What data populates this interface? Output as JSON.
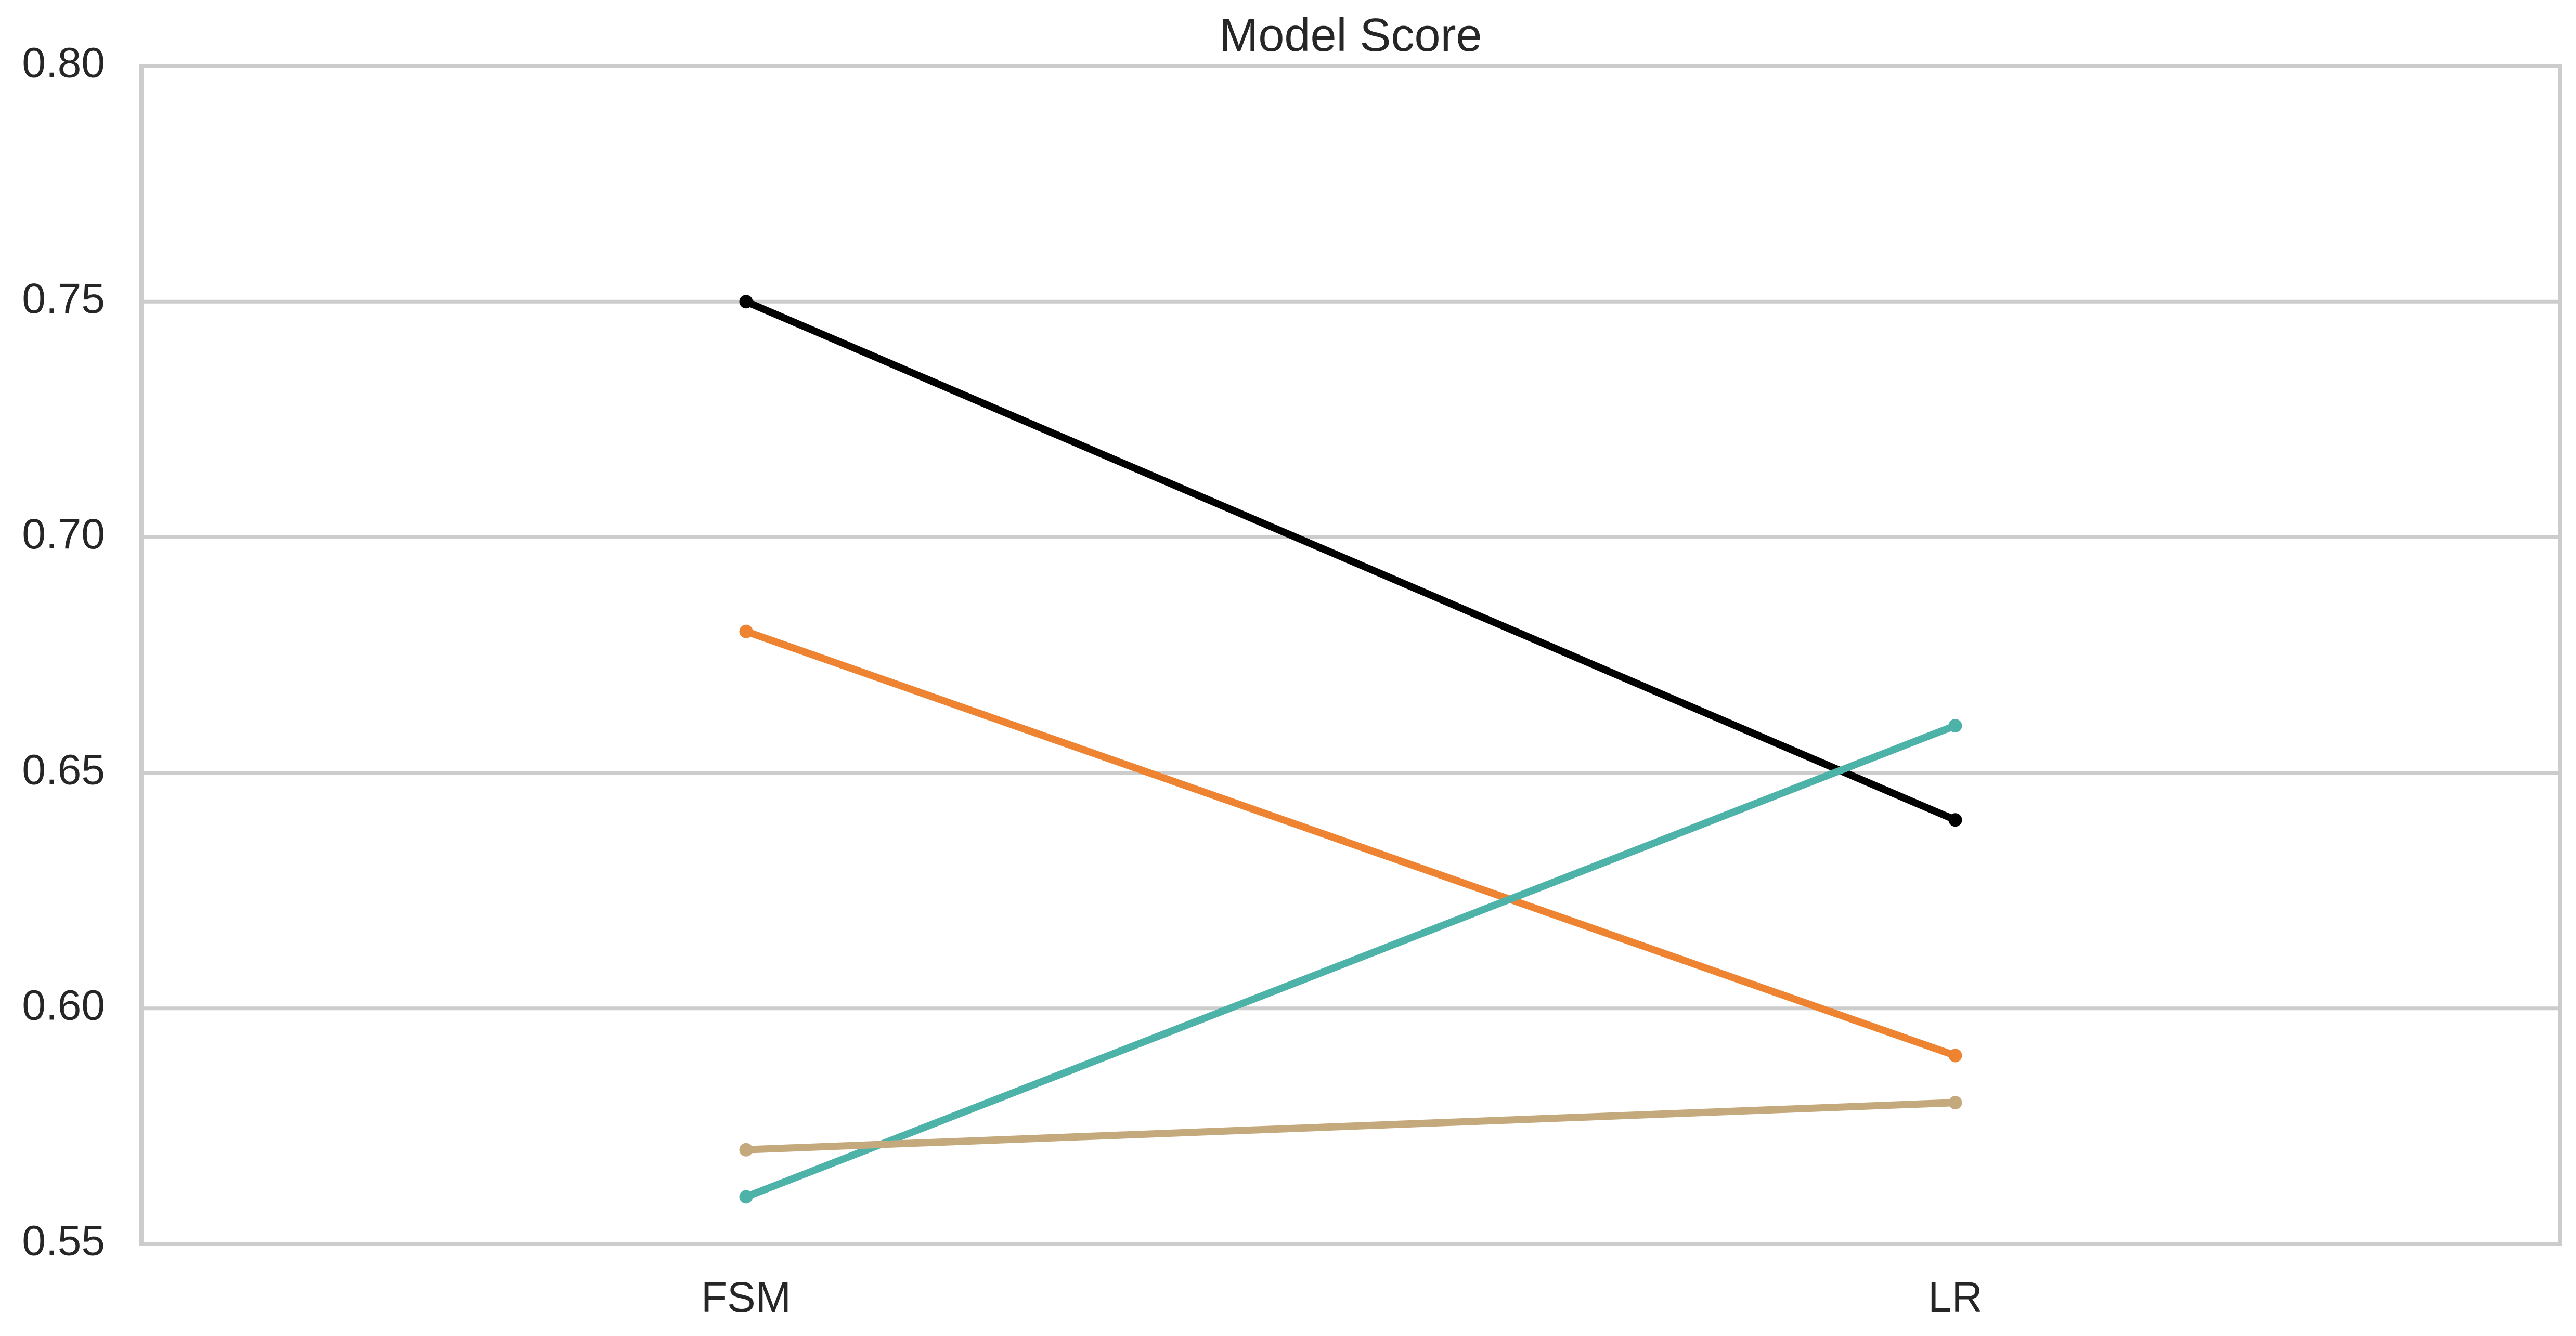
{
  "chart_data": {
    "type": "line",
    "title": "Model Score",
    "xlabel": "",
    "ylabel": "",
    "categories": [
      "FSM",
      "LR"
    ],
    "ylim": [
      0.55,
      0.8
    ],
    "yticks": [
      "0.55",
      "0.60",
      "0.65",
      "0.70",
      "0.75",
      "0.80"
    ],
    "ytick_values": [
      0.55,
      0.6,
      0.65,
      0.7,
      0.75,
      0.8
    ],
    "grid": "horizontal",
    "legend": "none",
    "series": [
      {
        "color": "#000000",
        "values": [
          0.75,
          0.64
        ]
      },
      {
        "color": "#ee8432",
        "values": [
          0.68,
          0.59
        ]
      },
      {
        "color": "#4db3a9",
        "values": [
          0.56,
          0.66
        ]
      },
      {
        "color": "#c4a97c",
        "values": [
          0.57,
          0.58
        ]
      }
    ],
    "colors": {
      "grid": "#cccccc",
      "frame": "#cccccc",
      "text": "#262626"
    }
  }
}
